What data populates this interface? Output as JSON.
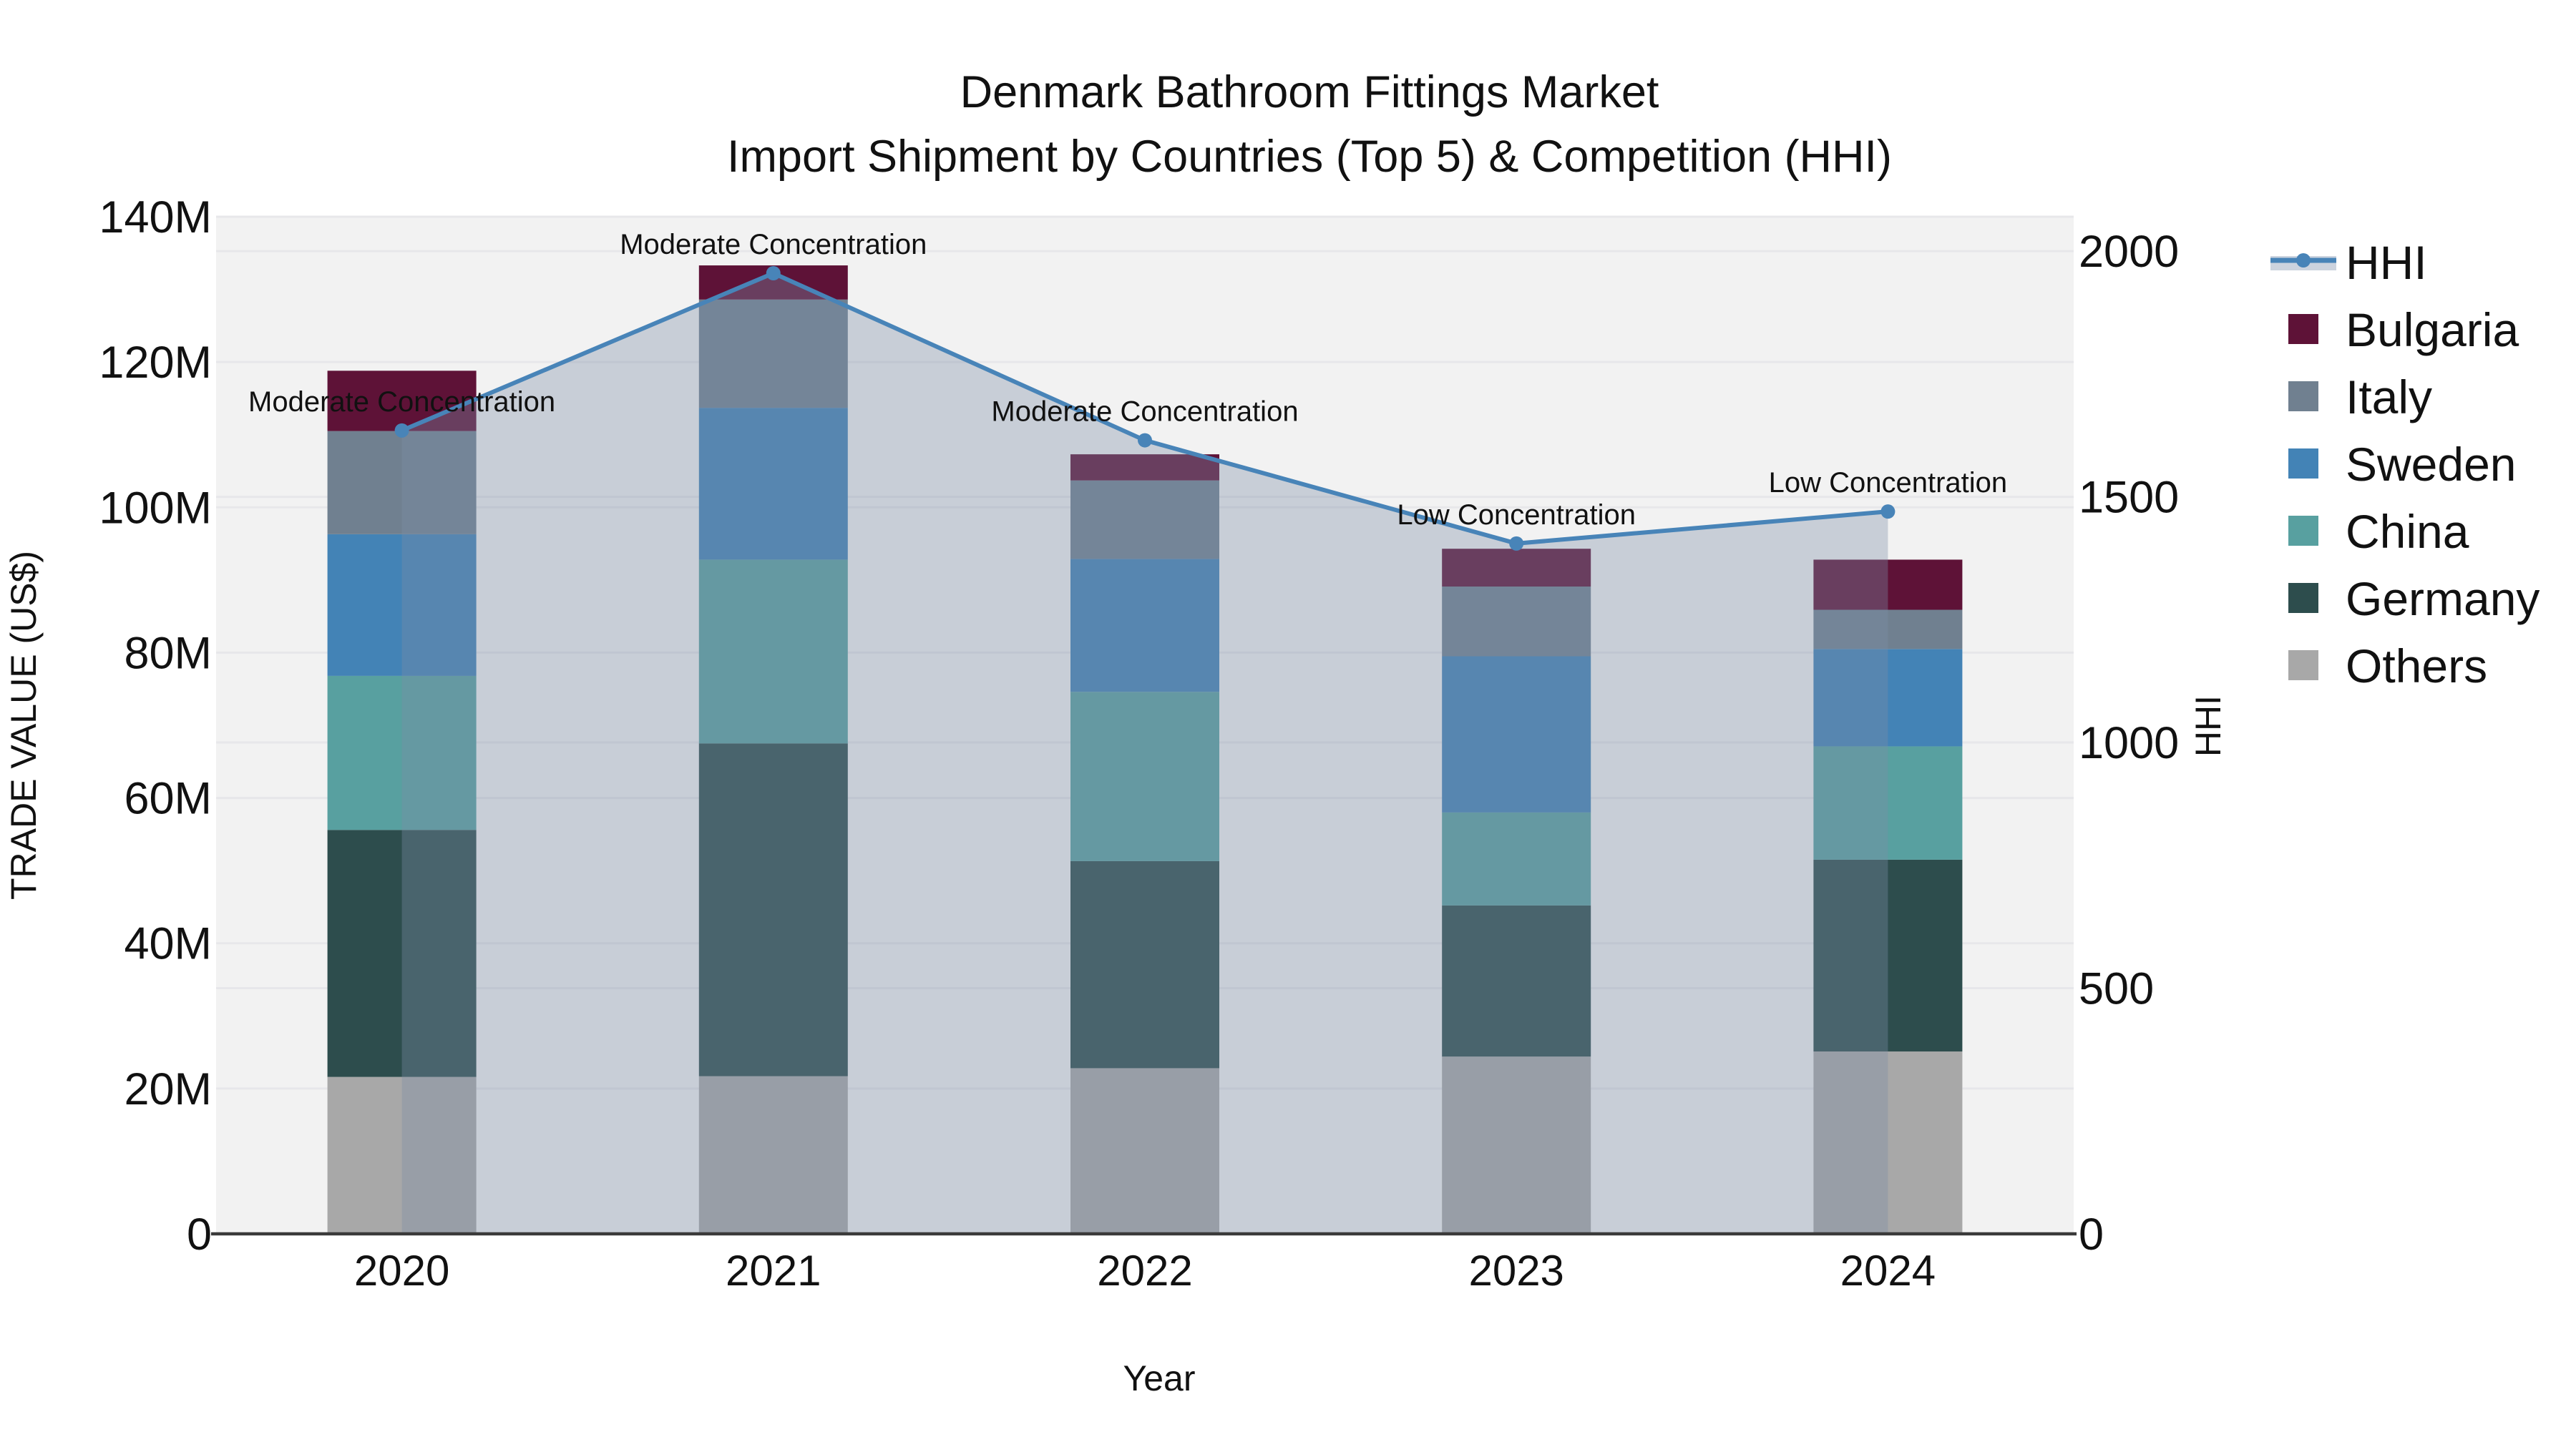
{
  "title": {
    "line1": "Denmark Bathroom Fittings Market",
    "line2": "Import Shipment by Countries (Top 5) & Competition (HHI)"
  },
  "colors": {
    "background": "#ffffff",
    "plot_background": "#f2f2f2",
    "gridline": "#e7e7ea",
    "axis_line": "#3a3a3a",
    "text": "#111111",
    "hhi_line": "#4884b8",
    "hhi_area_fill": "rgba(125,140,165,0.36)",
    "legend_band": "#ccd3de"
  },
  "chart_data": {
    "type": "bar",
    "subtype": "stacked-bars-with-hhi-line-and-area-overlay",
    "categories": [
      "2020",
      "2021",
      "2022",
      "2023",
      "2024"
    ],
    "value_unit": "million US$",
    "stack_order_bottom_to_top": [
      "Others",
      "Germany",
      "China",
      "Sweden",
      "Italy",
      "Bulgaria"
    ],
    "series": [
      {
        "name": "Others",
        "color": "#a8a8a8",
        "values": [
          21.6,
          21.7,
          22.8,
          24.4,
          25.1
        ]
      },
      {
        "name": "Germany",
        "color": "#2d4d4d",
        "values": [
          34.0,
          45.8,
          28.5,
          20.8,
          26.4
        ]
      },
      {
        "name": "China",
        "color": "#58a0a0",
        "values": [
          21.2,
          25.3,
          23.3,
          12.8,
          15.6
        ]
      },
      {
        "name": "Sweden",
        "color": "#4383b6",
        "values": [
          19.5,
          20.9,
          18.3,
          21.5,
          13.4
        ]
      },
      {
        "name": "Italy",
        "color": "#708090",
        "values": [
          14.2,
          14.9,
          10.8,
          9.6,
          5.4
        ]
      },
      {
        "name": "Bulgaria",
        "color": "#5e1237",
        "values": [
          8.3,
          4.7,
          3.6,
          5.2,
          6.9
        ]
      }
    ],
    "bar_totals_m": [
      118.8,
      133.3,
      107.3,
      94.3,
      92.8
    ],
    "line": {
      "name": "HHI",
      "values": [
        1635,
        1955,
        1615,
        1405,
        1470
      ]
    },
    "annotations": [
      "Moderate Concentration",
      "Moderate Concentration",
      "Moderate Concentration",
      "Low Concentration",
      "Low Concentration"
    ],
    "y_left": {
      "label": "TRADE VALUE (US$)",
      "tick_labels": [
        "0",
        "20M",
        "40M",
        "60M",
        "80M",
        "100M",
        "120M",
        "140M"
      ],
      "tick_values_m": [
        0,
        20,
        40,
        60,
        80,
        100,
        120,
        140
      ],
      "max_m": 140
    },
    "y_right": {
      "label": "HHI",
      "tick_labels": [
        "0",
        "500",
        "1000",
        "1500",
        "2000"
      ],
      "tick_values": [
        0,
        500,
        1000,
        1500,
        2000
      ],
      "top_value": 2070
    },
    "x_axis": {
      "label": "Year"
    },
    "legend": [
      {
        "label": "HHI",
        "type": "line",
        "color": "#4884b8"
      },
      {
        "label": "Bulgaria",
        "type": "swatch",
        "color": "#5e1237"
      },
      {
        "label": "Italy",
        "type": "swatch",
        "color": "#708090"
      },
      {
        "label": "Sweden",
        "type": "swatch",
        "color": "#4383b6"
      },
      {
        "label": "China",
        "type": "swatch",
        "color": "#58a0a0"
      },
      {
        "label": "Germany",
        "type": "swatch",
        "color": "#2d4d4d"
      },
      {
        "label": "Others",
        "type": "swatch",
        "color": "#a8a8a8"
      }
    ],
    "grid": "horizontal-both-axes",
    "legend_position": "right-outside"
  }
}
